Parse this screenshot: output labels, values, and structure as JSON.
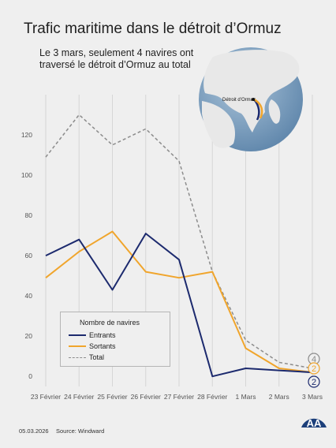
{
  "header": {
    "title": "Trafic maritime dans le détroit d’Ormuz",
    "subtitle": "Le 3 mars, seulement 4 navires ont traversé le détroit d’Ormuz au total"
  },
  "globe": {
    "label": "Détroit d’Ormuz"
  },
  "chart_data": {
    "type": "line",
    "categories": [
      "23 Février",
      "24 Février",
      "25 Février",
      "26 Février",
      "27 Février",
      "28 Février",
      "1 Mars",
      "2 Mars",
      "3 Mars"
    ],
    "series": [
      {
        "name": "Entrants",
        "values": [
          60,
          68,
          43,
          71,
          58,
          0,
          4,
          3,
          2
        ],
        "color": "#1c2a6e",
        "dash": false
      },
      {
        "name": "Sortants",
        "values": [
          49,
          62,
          72,
          52,
          49,
          52,
          14,
          4,
          2
        ],
        "color": "#f0a52c",
        "dash": false
      },
      {
        "name": "Total",
        "values": [
          109,
          130,
          115,
          123,
          107,
          52,
          18,
          7,
          4
        ],
        "color": "#8c8c8c",
        "dash": true
      }
    ],
    "yticks": [
      0,
      20,
      40,
      60,
      80,
      100,
      120
    ],
    "ylim": [
      -5,
      140
    ],
    "legend_title": "Nombre de navires",
    "legend_position": "bottom-left",
    "end_labels": [
      {
        "value": "4",
        "series": "Total"
      },
      {
        "value": "2",
        "series": "Sortants"
      },
      {
        "value": "2",
        "series": "Entrants"
      }
    ]
  },
  "footer": {
    "date": "05.03.2026",
    "source": "Source: Windward"
  },
  "logo": {
    "text": "AA"
  }
}
